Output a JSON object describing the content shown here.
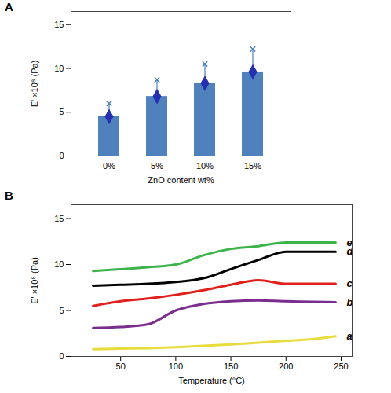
{
  "chart_data": [
    {
      "type": "bar",
      "title": "A",
      "x_label": "ZnO content wt%",
      "y_label": "E' ×10⁸ (Pa)",
      "categories": [
        "0%",
        "5%",
        "10%",
        "15%"
      ],
      "values": [
        4.5,
        6.8,
        8.3,
        9.6
      ],
      "errors": [
        1.5,
        1.9,
        2.2,
        2.6
      ],
      "color": "#4f81bd",
      "marker": "diamond",
      "ylim": [
        0,
        16.5
      ],
      "yticks": [
        0,
        5,
        10,
        15
      ],
      "grid": false
    },
    {
      "type": "line",
      "title": "B",
      "x_label": "Temperature (°C)",
      "y_label": "E' ×10⁸ (Pa)",
      "x": [
        25,
        50,
        75,
        100,
        125,
        150,
        175,
        200,
        225,
        245
      ],
      "series": [
        {
          "name": "a",
          "color": "#e8dc3c",
          "values": [
            0.8,
            0.85,
            0.9,
            1.0,
            1.15,
            1.3,
            1.5,
            1.7,
            1.9,
            2.2
          ]
        },
        {
          "name": "b",
          "color": "#7b2d8e",
          "values": [
            3.1,
            3.2,
            3.5,
            5.0,
            5.7,
            6.0,
            6.1,
            6.0,
            5.95,
            5.9
          ]
        },
        {
          "name": "c",
          "color": "#e0201c",
          "values": [
            5.5,
            6.0,
            6.3,
            6.7,
            7.2,
            7.8,
            8.3,
            7.9,
            7.9,
            7.9
          ]
        },
        {
          "name": "d",
          "color": "#000000",
          "values": [
            7.7,
            7.8,
            7.9,
            8.1,
            8.5,
            9.5,
            10.5,
            11.4,
            11.4,
            11.4
          ]
        },
        {
          "name": "e",
          "color": "#3cb44b",
          "values": [
            9.3,
            9.5,
            9.7,
            10.0,
            11.0,
            11.7,
            12.0,
            12.4,
            12.4,
            12.4
          ]
        }
      ],
      "xlim": [
        5,
        260
      ],
      "xticks": [
        50,
        100,
        150,
        200,
        250
      ],
      "ylim": [
        0,
        16.5
      ],
      "yticks": [
        0,
        5,
        10,
        15
      ],
      "grid": false
    }
  ]
}
